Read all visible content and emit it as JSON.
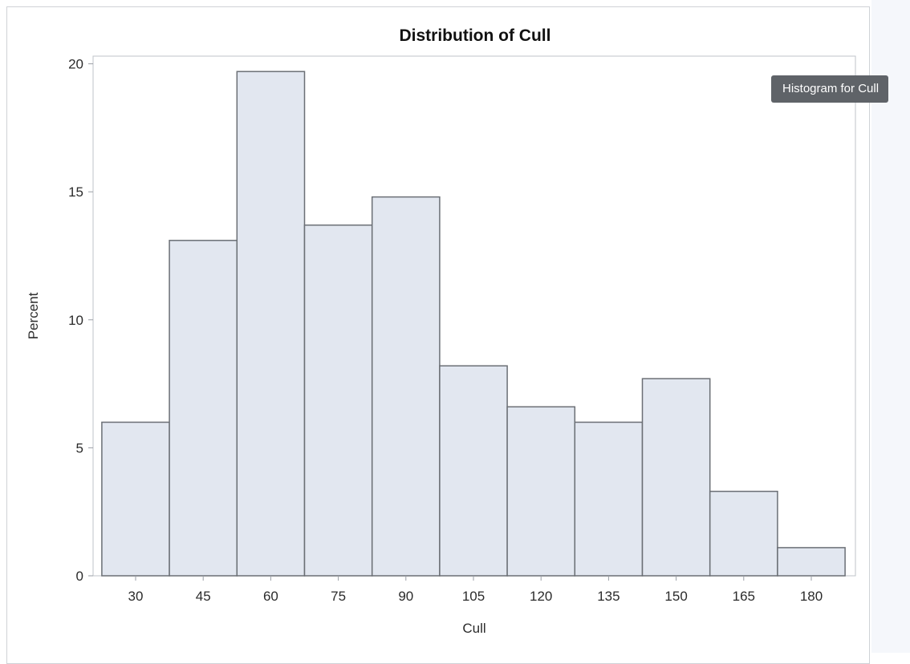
{
  "tooltip": {
    "text": "Histogram for Cull"
  },
  "chart_data": {
    "type": "bar",
    "title": "Distribution of Cull",
    "xlabel": "Cull",
    "ylabel": "Percent",
    "categories": [
      "30",
      "45",
      "60",
      "75",
      "90",
      "105",
      "120",
      "135",
      "150",
      "165",
      "180"
    ],
    "bin_midpoints": [
      30,
      45,
      60,
      75,
      90,
      105,
      120,
      135,
      150,
      165,
      180
    ],
    "bin_width": 15,
    "values": [
      6.0,
      13.1,
      19.7,
      13.7,
      14.8,
      8.2,
      6.6,
      6.0,
      7.7,
      3.3,
      1.1
    ],
    "yticks": [
      0,
      5,
      10,
      15,
      20
    ],
    "ylim": [
      0,
      20.3
    ],
    "grid": false,
    "legend": "none",
    "colors": {
      "bar_fill": "#e2e7f0",
      "bar_stroke": "#6b6f75",
      "axis": "#9a9ea5",
      "text": "#2b2b2b"
    }
  }
}
